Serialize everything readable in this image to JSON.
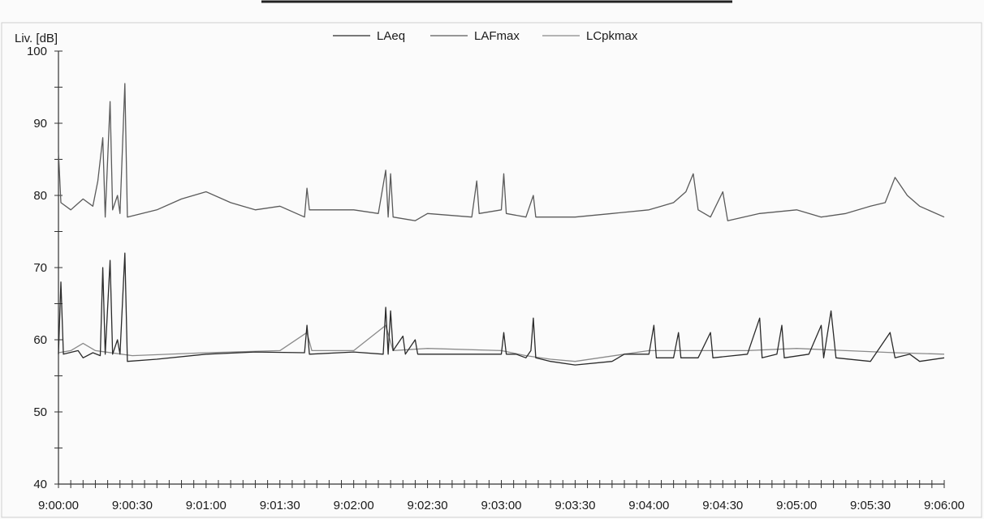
{
  "chart_data": {
    "type": "line",
    "title": "",
    "ylabel": "Liv. [dB]",
    "xlabel": "",
    "ylim": [
      40,
      100
    ],
    "yticks": [
      "40",
      "50",
      "60",
      "70",
      "80",
      "90",
      "100"
    ],
    "x_range_seconds": [
      0,
      360
    ],
    "xticks": [
      "9:00:00",
      "9:00:30",
      "9:01:00",
      "9:01:30",
      "9:02:00",
      "9:02:30",
      "9:03:00",
      "9:03:30",
      "9:04:00",
      "9:04:30",
      "9:05:00",
      "9:05:30",
      "9:06:00"
    ],
    "grid": false,
    "legend_position": "top",
    "series": [
      {
        "name": "LAeq",
        "color": "#2a2a2a",
        "points": [
          [
            "9:00:00",
            58
          ],
          [
            "9:00:01",
            68
          ],
          [
            "9:00:02",
            58
          ],
          [
            "9:00:08",
            58.5
          ],
          [
            "9:00:10",
            57.5
          ],
          [
            "9:00:14",
            58.2
          ],
          [
            "9:00:17",
            57.8
          ],
          [
            "9:00:18",
            70
          ],
          [
            "9:00:19",
            58
          ],
          [
            "9:00:21",
            71
          ],
          [
            "9:00:22",
            58
          ],
          [
            "9:00:24",
            60
          ],
          [
            "9:00:25",
            58
          ],
          [
            "9:00:27",
            72
          ],
          [
            "9:00:28",
            57
          ],
          [
            "9:00:40",
            57.3
          ],
          [
            "9:01:00",
            58
          ],
          [
            "9:01:20",
            58.3
          ],
          [
            "9:01:40",
            58.2
          ],
          [
            "9:01:41",
            62
          ],
          [
            "9:01:42",
            58
          ],
          [
            "9:02:00",
            58.3
          ],
          [
            "9:02:12",
            58
          ],
          [
            "9:02:13",
            64.5
          ],
          [
            "9:02:14",
            58
          ],
          [
            "9:02:15",
            64
          ],
          [
            "9:02:16",
            58.5
          ],
          [
            "9:02:20",
            60.5
          ],
          [
            "9:02:21",
            58
          ],
          [
            "9:02:25",
            60
          ],
          [
            "9:02:26",
            58
          ],
          [
            "9:03:00",
            58
          ],
          [
            "9:03:01",
            61
          ],
          [
            "9:03:02",
            58
          ],
          [
            "9:03:06",
            58
          ],
          [
            "9:03:10",
            57.5
          ],
          [
            "9:03:12",
            58.5
          ],
          [
            "9:03:13",
            63
          ],
          [
            "9:03:14",
            57.5
          ],
          [
            "9:03:20",
            57
          ],
          [
            "9:03:30",
            56.5
          ],
          [
            "9:03:45",
            57
          ],
          [
            "9:03:50",
            58
          ],
          [
            "9:04:00",
            58
          ],
          [
            "9:04:02",
            62
          ],
          [
            "9:04:03",
            57.5
          ],
          [
            "9:04:10",
            57.5
          ],
          [
            "9:04:12",
            61
          ],
          [
            "9:04:13",
            57.5
          ],
          [
            "9:04:20",
            57.5
          ],
          [
            "9:04:25",
            61
          ],
          [
            "9:04:26",
            57.5
          ],
          [
            "9:04:40",
            58
          ],
          [
            "9:04:45",
            63
          ],
          [
            "9:04:46",
            57.5
          ],
          [
            "9:04:52",
            58
          ],
          [
            "9:04:54",
            62
          ],
          [
            "9:04:55",
            57.5
          ],
          [
            "9:05:05",
            58
          ],
          [
            "9:05:10",
            62
          ],
          [
            "9:05:11",
            57.5
          ],
          [
            "9:05:14",
            64
          ],
          [
            "9:05:16",
            57.5
          ],
          [
            "9:05:30",
            57
          ],
          [
            "9:05:38",
            61
          ],
          [
            "9:05:40",
            57.5
          ],
          [
            "9:05:46",
            58
          ],
          [
            "9:05:50",
            57
          ],
          [
            "9:06:00",
            57.5
          ]
        ]
      },
      {
        "name": "LAFmax",
        "color": "#5a5a5a",
        "points": [
          [
            "9:00:00",
            86
          ],
          [
            "9:00:01",
            79
          ],
          [
            "9:00:05",
            78
          ],
          [
            "9:00:10",
            79.5
          ],
          [
            "9:00:14",
            78.5
          ],
          [
            "9:00:16",
            82
          ],
          [
            "9:00:18",
            88
          ],
          [
            "9:00:19",
            77
          ],
          [
            "9:00:21",
            93
          ],
          [
            "9:00:22",
            78
          ],
          [
            "9:00:24",
            80
          ],
          [
            "9:00:25",
            77.5
          ],
          [
            "9:00:27",
            95.5
          ],
          [
            "9:00:28",
            77
          ],
          [
            "9:00:40",
            78
          ],
          [
            "9:00:50",
            79.5
          ],
          [
            "9:01:00",
            80.5
          ],
          [
            "9:01:10",
            79
          ],
          [
            "9:01:20",
            78
          ],
          [
            "9:01:30",
            78.5
          ],
          [
            "9:01:40",
            77
          ],
          [
            "9:01:41",
            81
          ],
          [
            "9:01:42",
            78
          ],
          [
            "9:02:00",
            78
          ],
          [
            "9:02:10",
            77.5
          ],
          [
            "9:02:13",
            83.5
          ],
          [
            "9:02:14",
            77
          ],
          [
            "9:02:15",
            83
          ],
          [
            "9:02:16",
            77
          ],
          [
            "9:02:25",
            76.5
          ],
          [
            "9:02:30",
            77.5
          ],
          [
            "9:02:48",
            77
          ],
          [
            "9:02:50",
            82
          ],
          [
            "9:02:51",
            77.5
          ],
          [
            "9:03:00",
            78
          ],
          [
            "9:03:01",
            83
          ],
          [
            "9:03:02",
            77.5
          ],
          [
            "9:03:10",
            77
          ],
          [
            "9:03:13",
            80
          ],
          [
            "9:03:14",
            77
          ],
          [
            "9:03:30",
            77
          ],
          [
            "9:03:45",
            77.5
          ],
          [
            "9:04:00",
            78
          ],
          [
            "9:04:10",
            79
          ],
          [
            "9:04:15",
            80.5
          ],
          [
            "9:04:18",
            83
          ],
          [
            "9:04:20",
            78
          ],
          [
            "9:04:25",
            77
          ],
          [
            "9:04:30",
            80.5
          ],
          [
            "9:04:32",
            76.5
          ],
          [
            "9:04:45",
            77.5
          ],
          [
            "9:05:00",
            78
          ],
          [
            "9:05:10",
            77
          ],
          [
            "9:05:20",
            77.5
          ],
          [
            "9:05:30",
            78.5
          ],
          [
            "9:05:36",
            79
          ],
          [
            "9:05:40",
            82.5
          ],
          [
            "9:05:45",
            80
          ],
          [
            "9:05:50",
            78.5
          ],
          [
            "9:06:00",
            77
          ]
        ]
      },
      {
        "name": "LCpkmax",
        "color": "#8a8a8a",
        "points": [
          [
            "9:00:00",
            58.2
          ],
          [
            "9:00:05",
            58.5
          ],
          [
            "9:00:10",
            59.5
          ],
          [
            "9:00:15",
            58.5
          ],
          [
            "9:00:30",
            57.8
          ],
          [
            "9:01:00",
            58.2
          ],
          [
            "9:01:30",
            58.5
          ],
          [
            "9:01:41",
            61
          ],
          [
            "9:01:43",
            58.5
          ],
          [
            "9:02:00",
            58.5
          ],
          [
            "9:02:13",
            62
          ],
          [
            "9:02:16",
            58.5
          ],
          [
            "9:02:30",
            58.8
          ],
          [
            "9:03:00",
            58.5
          ],
          [
            "9:03:10",
            57.8
          ],
          [
            "9:03:20",
            57.3
          ],
          [
            "9:03:30",
            57
          ],
          [
            "9:03:50",
            58
          ],
          [
            "9:04:00",
            58.5
          ],
          [
            "9:04:20",
            58.5
          ],
          [
            "9:04:40",
            58.5
          ],
          [
            "9:05:00",
            58.8
          ],
          [
            "9:05:20",
            58.5
          ],
          [
            "9:05:40",
            58.2
          ],
          [
            "9:06:00",
            58
          ]
        ]
      }
    ]
  }
}
